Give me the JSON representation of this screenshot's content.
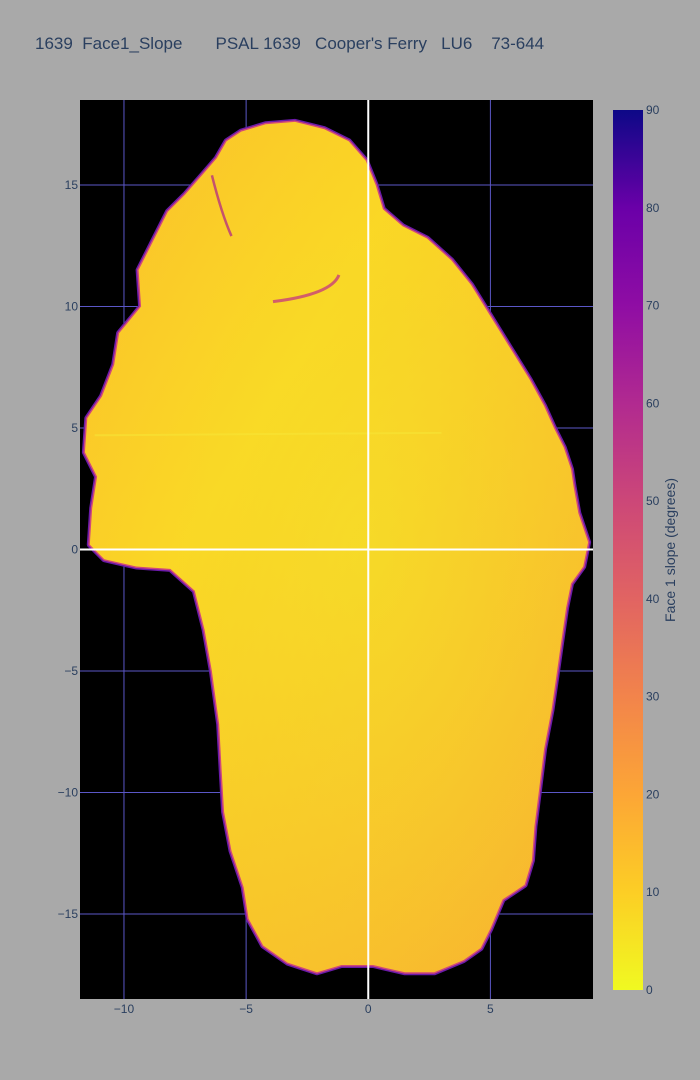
{
  "chart_data": {
    "type": "heatmap",
    "title": "1639  Face1_Slope       PSAL 1639   Cooper's Ferry   LU6    73-644",
    "xlabel": "",
    "ylabel": "",
    "xlim": [
      -11.8,
      9.2
    ],
    "ylim": [
      -18.5,
      18.5
    ],
    "x_ticks": [
      -10,
      -5,
      0,
      5
    ],
    "x_tick_labels": [
      "−10",
      "−5",
      "0",
      "5"
    ],
    "y_ticks": [
      -15,
      -10,
      -5,
      0,
      5,
      10,
      15
    ],
    "y_tick_labels": [
      "−15",
      "−10",
      "−5",
      "0",
      "5",
      "10",
      "15"
    ],
    "grid": true,
    "plot_background": "#000000",
    "grid_color": "#5b57c7",
    "zero_line_color": "#ffffff",
    "colorscale": "plasma_reversed",
    "colorscale_stops": [
      {
        "v": 0,
        "c": "#f0f921"
      },
      {
        "v": 10,
        "c": "#fcce25"
      },
      {
        "v": 20,
        "c": "#fca636"
      },
      {
        "v": 30,
        "c": "#f2844b"
      },
      {
        "v": 40,
        "c": "#e16462"
      },
      {
        "v": 50,
        "c": "#cc4778"
      },
      {
        "v": 60,
        "c": "#b12a90"
      },
      {
        "v": 70,
        "c": "#8f0da4"
      },
      {
        "v": 80,
        "c": "#6a00a8"
      },
      {
        "v": 90,
        "c": "#0d0887"
      }
    ],
    "colorbar": {
      "title": "Face 1 slope (degrees)",
      "range": [
        0,
        90
      ],
      "ticks": [
        0,
        10,
        20,
        30,
        40,
        50,
        60,
        70,
        80,
        90
      ],
      "tick_labels": [
        "0",
        "10",
        "20",
        "30",
        "40",
        "50",
        "60",
        "70",
        "80",
        "90"
      ]
    },
    "outline": [
      [
        -6.2,
        16.1
      ],
      [
        -5.8,
        16.8
      ],
      [
        -5.2,
        17.2
      ],
      [
        -4.2,
        17.5
      ],
      [
        -3.0,
        17.6
      ],
      [
        -1.8,
        17.3
      ],
      [
        -0.8,
        16.8
      ],
      [
        -0.1,
        16.0
      ],
      [
        0.3,
        15.0
      ],
      [
        0.6,
        14.0
      ],
      [
        1.4,
        13.3
      ],
      [
        2.4,
        12.8
      ],
      [
        3.4,
        11.9
      ],
      [
        4.2,
        10.9
      ],
      [
        5.0,
        9.6
      ],
      [
        5.8,
        8.3
      ],
      [
        6.6,
        7.0
      ],
      [
        7.2,
        5.9
      ],
      [
        7.6,
        5.0
      ],
      [
        8.0,
        4.2
      ],
      [
        8.3,
        3.3
      ],
      [
        8.4,
        2.6
      ],
      [
        8.6,
        1.5
      ],
      [
        9.0,
        0.3
      ],
      [
        8.8,
        -0.7
      ],
      [
        8.3,
        -1.4
      ],
      [
        8.1,
        -2.4
      ],
      [
        7.9,
        -3.8
      ],
      [
        7.7,
        -5.2
      ],
      [
        7.5,
        -6.6
      ],
      [
        7.2,
        -8.2
      ],
      [
        7.0,
        -9.8
      ],
      [
        6.8,
        -11.4
      ],
      [
        6.7,
        -12.8
      ],
      [
        6.4,
        -13.8
      ],
      [
        5.5,
        -14.4
      ],
      [
        5.0,
        -15.6
      ],
      [
        4.6,
        -16.4
      ],
      [
        3.9,
        -16.9
      ],
      [
        2.7,
        -17.4
      ],
      [
        1.5,
        -17.4
      ],
      [
        0.2,
        -17.1
      ],
      [
        -1.1,
        -17.1
      ],
      [
        -2.1,
        -17.4
      ],
      [
        -3.3,
        -17.0
      ],
      [
        -4.3,
        -16.3
      ],
      [
        -4.9,
        -15.2
      ],
      [
        -5.1,
        -13.9
      ],
      [
        -5.6,
        -12.4
      ],
      [
        -5.9,
        -10.8
      ],
      [
        -6.0,
        -9.1
      ],
      [
        -6.1,
        -7.2
      ],
      [
        -6.4,
        -5.0
      ],
      [
        -6.7,
        -3.3
      ],
      [
        -7.1,
        -1.7
      ],
      [
        -8.1,
        -0.8
      ],
      [
        -9.5,
        -0.7
      ],
      [
        -10.8,
        -0.4
      ],
      [
        -11.4,
        0.2
      ],
      [
        -11.3,
        1.7
      ],
      [
        -11.1,
        3.0
      ],
      [
        -11.6,
        4.0
      ],
      [
        -11.5,
        5.4
      ],
      [
        -10.9,
        6.3
      ],
      [
        -10.4,
        7.6
      ],
      [
        -10.2,
        8.9
      ],
      [
        -9.3,
        10.0
      ],
      [
        -9.4,
        11.5
      ],
      [
        -8.8,
        12.7
      ],
      [
        -8.2,
        13.9
      ],
      [
        -7.5,
        14.6
      ],
      [
        -6.8,
        15.4
      ]
    ]
  }
}
